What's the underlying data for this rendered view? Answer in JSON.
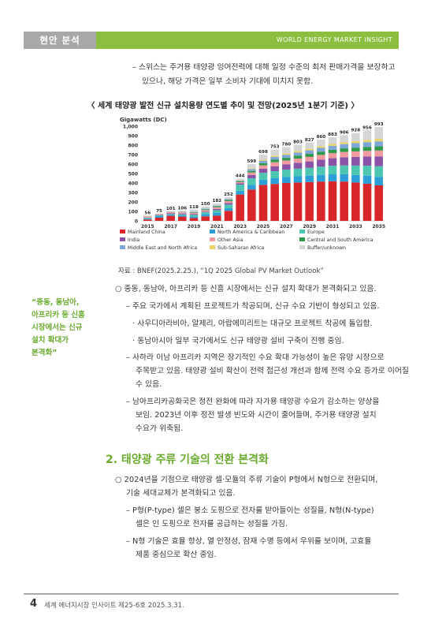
{
  "header": {
    "section_tag": "현안 분석",
    "publication": "WORLD ENERGY MARKET INSIGHT"
  },
  "intro_bullets": [
    "– 스위스는 주거용 태양광 잉여전력에 대해 일정 수준의 최저 판매가격을 보장하고",
    "있으나, 해당 가격은 일부 소비자 기대에 미치지 못함."
  ],
  "chart_title": "〈 세계 태양광 발전 신규 설치용량 연도별 추이 및 전망(2025년 1분기 기준) 〉",
  "chart_data": {
    "type": "bar",
    "ylabel": "Gigawatts (DC)",
    "ylim": [
      0,
      1000
    ],
    "yticks": [
      "0",
      "100",
      "200",
      "300",
      "400",
      "500",
      "600",
      "700",
      "800",
      "900",
      "1,000"
    ],
    "categories": [
      "2015",
      "2016",
      "2017",
      "2018",
      "2019",
      "2020",
      "2021",
      "2022",
      "2023",
      "2024",
      "2025",
      "2026",
      "2027",
      "2028",
      "2029",
      "2030",
      "2031",
      "2032",
      "2033",
      "2034",
      "2035"
    ],
    "xtick_labels": [
      "2015",
      "2017",
      "2019",
      "2021",
      "2023",
      "2025",
      "2027",
      "2029",
      "2031",
      "2033",
      "2035"
    ],
    "totals": [
      56,
      75,
      101,
      106,
      118,
      150,
      182,
      252,
      444,
      599,
      698,
      753,
      780,
      803,
      827,
      860,
      883,
      906,
      928,
      956,
      993
    ],
    "series": [
      {
        "name": "Mainland China",
        "color": "#d9262a",
        "values": [
          15,
          34,
          53,
          45,
          30,
          48,
          55,
          106,
          278,
          330,
          380,
          390,
          400,
          405,
          410,
          415,
          418,
          415,
          405,
          392,
          375
        ]
      },
      {
        "name": "North America & Caribbean",
        "color": "#2d9fd8",
        "values": [
          8,
          16,
          12,
          13,
          15,
          22,
          31,
          27,
          40,
          50,
          55,
          60,
          63,
          66,
          68,
          71,
          74,
          77,
          80,
          85,
          90
        ]
      },
      {
        "name": "Europe",
        "color": "#4cc6b1",
        "values": [
          9,
          8,
          7,
          11,
          18,
          21,
          27,
          39,
          65,
          70,
          72,
          75,
          78,
          80,
          82,
          86,
          90,
          94,
          99,
          105,
          112
        ]
      },
      {
        "name": "India",
        "color": "#8b53a8",
        "values": [
          2,
          4,
          9,
          9,
          8,
          5,
          13,
          17,
          14,
          35,
          44,
          50,
          55,
          62,
          68,
          74,
          80,
          86,
          92,
          98,
          104
        ]
      },
      {
        "name": "Other Asia",
        "color": "#f19aa0",
        "values": [
          13,
          9,
          12,
          13,
          15,
          18,
          18,
          20,
          12,
          26,
          36,
          45,
          42,
          45,
          48,
          51,
          53,
          56,
          58,
          60,
          62
        ]
      },
      {
        "name": "Central and South America",
        "color": "#2f9a4a",
        "values": [
          1,
          1,
          2,
          3,
          6,
          9,
          10,
          12,
          10,
          16,
          22,
          26,
          28,
          30,
          32,
          34,
          36,
          38,
          40,
          42,
          44
        ]
      },
      {
        "name": "Middle East and North Africa",
        "color": "#7ea7d8",
        "values": [
          1,
          1,
          2,
          3,
          5,
          6,
          7,
          9,
          7,
          20,
          26,
          30,
          32,
          35,
          37,
          40,
          42,
          45,
          47,
          50,
          53
        ]
      },
      {
        "name": "Sub-Saharan Africa",
        "color": "#e9d36a",
        "values": [
          1,
          1,
          1,
          1,
          1,
          1,
          1,
          2,
          3,
          8,
          11,
          13,
          14,
          15,
          16,
          18,
          19,
          20,
          22,
          24,
          26
        ]
      },
      {
        "name": "Buffer/unknown",
        "color": "#d5d5d5",
        "values": [
          6,
          1,
          3,
          8,
          20,
          20,
          20,
          20,
          15,
          44,
          52,
          64,
          68,
          65,
          66,
          71,
          71,
          75,
          85,
          100,
          127
        ]
      }
    ],
    "legend_placement": "bottom",
    "grid": false
  },
  "source": "자료 : BNEF(2025.2.25.), “1Q 2025 Global PV Market Outlook”",
  "body1": [
    "○ 중동, 동남아, 아프리카 등 신흥 시장에서는 신규 설치 확대가 본격화되고 있음.",
    "– 주요 국가에서 계획된 프로젝트가 착공되며, 신규 수요 기반이 형성되고 있음.",
    "· 사우디아라비아, 알제리, 아랍에미리트는 대규모 프로젝트 착공에 돌입함.",
    "· 동남아시아 일부 국가에서도 신규 태양광 설비 구축이 진행 중임.",
    "– 사하라 이남 아프리카 지역은 장기적인 수요 확대 가능성이 높은 유망 시장으로",
    "주목받고 있음. 태양광 설비 확산이 전력 접근성 개선과 함께 전력 수요 증가로 이어질",
    "수 있음.",
    "– 남아프리카공화국은 정전 완화에 따라 자가용 태양광 수요가 감소하는 양상을",
    "보임. 2023년 이후 정전 발생 빈도와 시간이 줄어들며, 주거용 태양광 설치",
    "수요가 위축됨."
  ],
  "sidebar_note": [
    "“중동, 동남아,",
    "아프리카 등 신흥",
    "시장에서는 신규",
    "설치 확대가",
    "본격화”"
  ],
  "section2_title": "2. 태양광 주류 기술의 전환 본격화",
  "body2": [
    "○ 2024년을 기점으로 태양광 셀·모듈의 주류 기술이 P형에서 N형으로 전환되며,",
    "기술 세대교체가 본격화되고 있음.",
    "– P형(P-type) 셀은 붕소 도핑으로 전자를 받아들이는 성질을, N형(N-type)",
    "셀은 인 도핑으로 전자를 공급하는 성질을 가짐.",
    "– N형 기술은 효율 향상, 열 안정성, 잠재 수명 등에서 우위를 보이며, 고효율",
    "제품 중심으로 확산 중임."
  ],
  "footer": {
    "page_number": "4",
    "publication_info": "세계 에너지시장 인사이트 제25-6호 2025.3.31."
  }
}
